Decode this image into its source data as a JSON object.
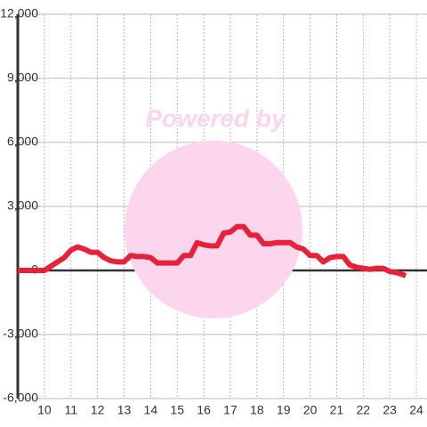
{
  "chart_data": {
    "type": "line",
    "watermark": "Powered by",
    "x": [
      9,
      9.5,
      10,
      10.25,
      10.5,
      10.75,
      11,
      11.25,
      11.5,
      11.75,
      12,
      12.25,
      12.5,
      12.75,
      13,
      13.25,
      13.5,
      13.75,
      14,
      14.25,
      14.5,
      14.75,
      15,
      15.25,
      15.5,
      15.75,
      16,
      16.25,
      16.5,
      16.75,
      17,
      17.25,
      17.5,
      17.75,
      18,
      18.25,
      18.5,
      18.75,
      19,
      19.25,
      19.5,
      19.75,
      20,
      20.25,
      20.5,
      20.75,
      21,
      21.25,
      21.5,
      21.75,
      22,
      22.25,
      22.5,
      22.75,
      23,
      23.25,
      23.5,
      23.6
    ],
    "series": [
      {
        "color": "#e8213b",
        "values": [
          0,
          0,
          0,
          200,
          400,
          600,
          950,
          1100,
          1000,
          850,
          850,
          600,
          450,
          400,
          400,
          700,
          650,
          650,
          600,
          350,
          350,
          350,
          350,
          700,
          700,
          1300,
          1200,
          1150,
          1150,
          1750,
          1800,
          2050,
          2050,
          1650,
          1650,
          1250,
          1250,
          1300,
          1300,
          1300,
          1100,
          1000,
          700,
          700,
          400,
          600,
          650,
          650,
          250,
          150,
          100,
          50,
          100,
          100,
          -50,
          -100,
          -200,
          -250
        ]
      }
    ],
    "xlim": [
      9,
      24.4
    ],
    "xticks": [
      10,
      11,
      12,
      13,
      14,
      15,
      16,
      17,
      18,
      19,
      20,
      21,
      22,
      23,
      24
    ],
    "ylim": [
      -6000,
      12000
    ],
    "yticks": [
      {
        "value": -6000,
        "label": "-6,000"
      },
      {
        "value": -3000,
        "label": "-3,000"
      },
      0,
      {
        "value": 3000,
        "label": "3,000"
      },
      {
        "value": 6000,
        "label": "6,000"
      },
      {
        "value": 9000,
        "label": "9,000"
      },
      {
        "value": 12000,
        "label": "12,000"
      }
    ],
    "grid": true
  }
}
